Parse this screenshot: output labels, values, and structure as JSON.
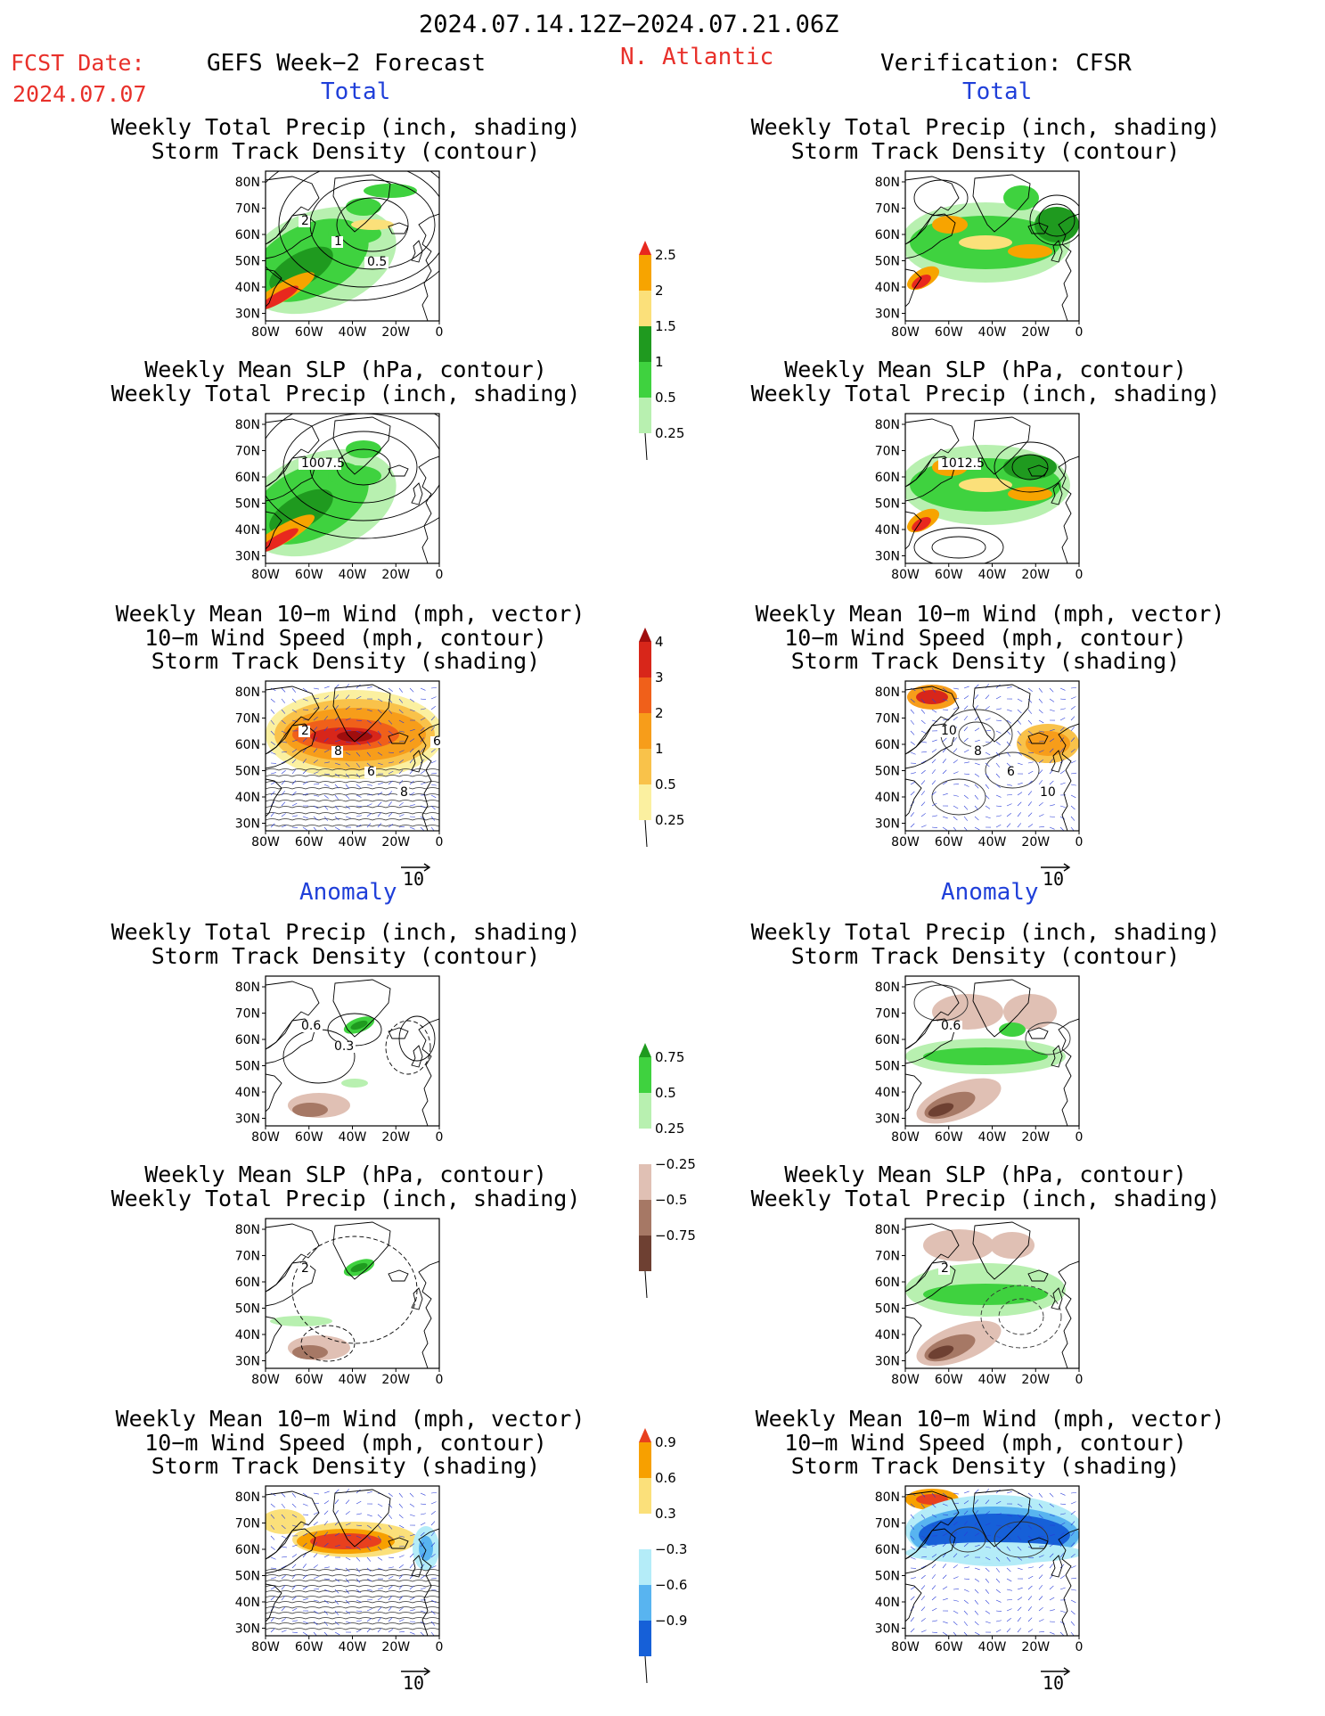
{
  "header": {
    "date_range": "2024.07.14.12Z−2024.07.21.06Z",
    "fcst_label": "FCST Date:",
    "fcst_date": "2024.07.07",
    "model": "GEFS Week−2 Forecast",
    "region": "N. Atlantic",
    "verification": "Verification: CFSR"
  },
  "sections": {
    "total": "Total",
    "anomaly": "Anomaly"
  },
  "titles": {
    "precip_storm": [
      "Weekly Total Precip (inch, shading)",
      "Storm Track Density (contour)"
    ],
    "slp_precip": [
      "Weekly Mean SLP (hPa, contour)",
      "Weekly Total Precip (inch, shading)"
    ],
    "wind_storm": [
      "Weekly Mean 10−m Wind (mph, vector)",
      "10−m Wind Speed (mph, contour)",
      "Storm Track Density (shading)"
    ]
  },
  "axes": {
    "lat_ticks": [
      "80N",
      "70N",
      "60N",
      "50N",
      "40N",
      "30N"
    ],
    "lon_ticks": [
      "80W",
      "60W",
      "40W",
      "20W",
      "0"
    ]
  },
  "vector_ref": "10",
  "colorbars": {
    "precip_total": {
      "labels": [
        "2.5",
        "2",
        "1.5",
        "1",
        "0.5",
        "0.25"
      ],
      "colors": [
        "#e8281e",
        "#f7a400",
        "#fbe07a",
        "#1f9a1f",
        "#3fd23f",
        "#b8f0b0"
      ]
    },
    "storm_total": {
      "labels": [
        "4",
        "3",
        "2",
        "1",
        "0.5",
        "0.25"
      ],
      "colors": [
        "#a00e0e",
        "#d8261a",
        "#f0601a",
        "#f79d1a",
        "#f9c24a",
        "#fbf0a0"
      ]
    },
    "precip_anom": {
      "labels": [
        "0.75",
        "0.5",
        "0.25",
        "−0.25",
        "−0.5",
        "−0.75"
      ],
      "colors": [
        "#1e9a1e",
        "#3fd23f",
        "#b8f0b0",
        "#ffffff",
        "#e0c0b4",
        "#a67865",
        "#6e4032"
      ]
    },
    "storm_anom": {
      "labels": [
        "0.9",
        "0.6",
        "0.3",
        "−0.3",
        "−0.6",
        "−0.9"
      ],
      "colors": [
        "#e8401e",
        "#f7a000",
        "#fbe07a",
        "#ffffff",
        "#b4ecf8",
        "#58b4f0",
        "#1660d8"
      ]
    }
  },
  "contour_labels": {
    "l1": [
      "2",
      "1",
      "0.5"
    ],
    "l2": [
      "1007.5"
    ],
    "l3": [
      "2",
      "8",
      "6",
      "8",
      "6"
    ],
    "r2": [
      "1012.5"
    ],
    "r3": [
      "10",
      "8",
      "6",
      "10"
    ],
    "la1": [
      "0.6",
      "0.3"
    ],
    "la2": [
      "2"
    ],
    "ra1": [
      "0.6"
    ],
    "ra2": [
      "2"
    ]
  }
}
